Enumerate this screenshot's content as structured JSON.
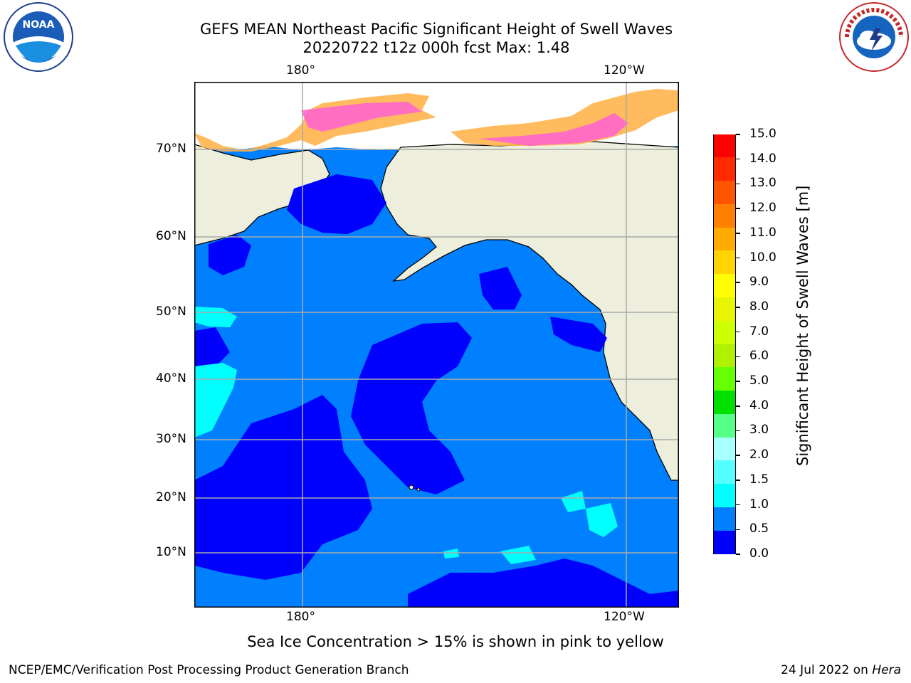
{
  "title": {
    "line1": "GEFS MEAN Northeast Pacific Significant Height of Swell Waves",
    "line2": "20220722 t12z 000h fcst   Max: 1.48"
  },
  "logos": {
    "left": "noaa-logo",
    "right": "nws-logo"
  },
  "map": {
    "lon_top_labels": [
      "180°",
      "120°W"
    ],
    "lon_bottom_labels": [
      "180°",
      "120°W"
    ],
    "lat_labels": [
      "70°N",
      "60°N",
      "50°N",
      "40°N",
      "30°N",
      "20°N",
      "10°N"
    ]
  },
  "colorbar": {
    "title": "Significant Height of Swell Waves [m]",
    "ticks": [
      "15.0",
      "14.0",
      "13.0",
      "12.0",
      "11.0",
      "10.0",
      "9.0",
      "8.0",
      "7.0",
      "6.0",
      "5.0",
      "4.0",
      "3.0",
      "2.0",
      "1.5",
      "1.0",
      "0.5",
      "0.0"
    ],
    "colors_top_to_bottom": [
      "#ff0000",
      "#ff2a00",
      "#ff5500",
      "#ff8000",
      "#ffaa00",
      "#ffd400",
      "#ffff00",
      "#e8f500",
      "#ccff00",
      "#b0f000",
      "#66ff00",
      "#00e000",
      "#55ff88",
      "#aaffff",
      "#55ffff",
      "#00ffff",
      "#0080ff",
      "#0000ff"
    ]
  },
  "caption": "Sea Ice Concentration > 15% is shown in pink to yellow",
  "footer": {
    "left": "NCEP/EMC/Verification Post Processing Product Generation Branch",
    "right_date": "24 Jul 2022 on ",
    "right_host": "Hera"
  }
}
